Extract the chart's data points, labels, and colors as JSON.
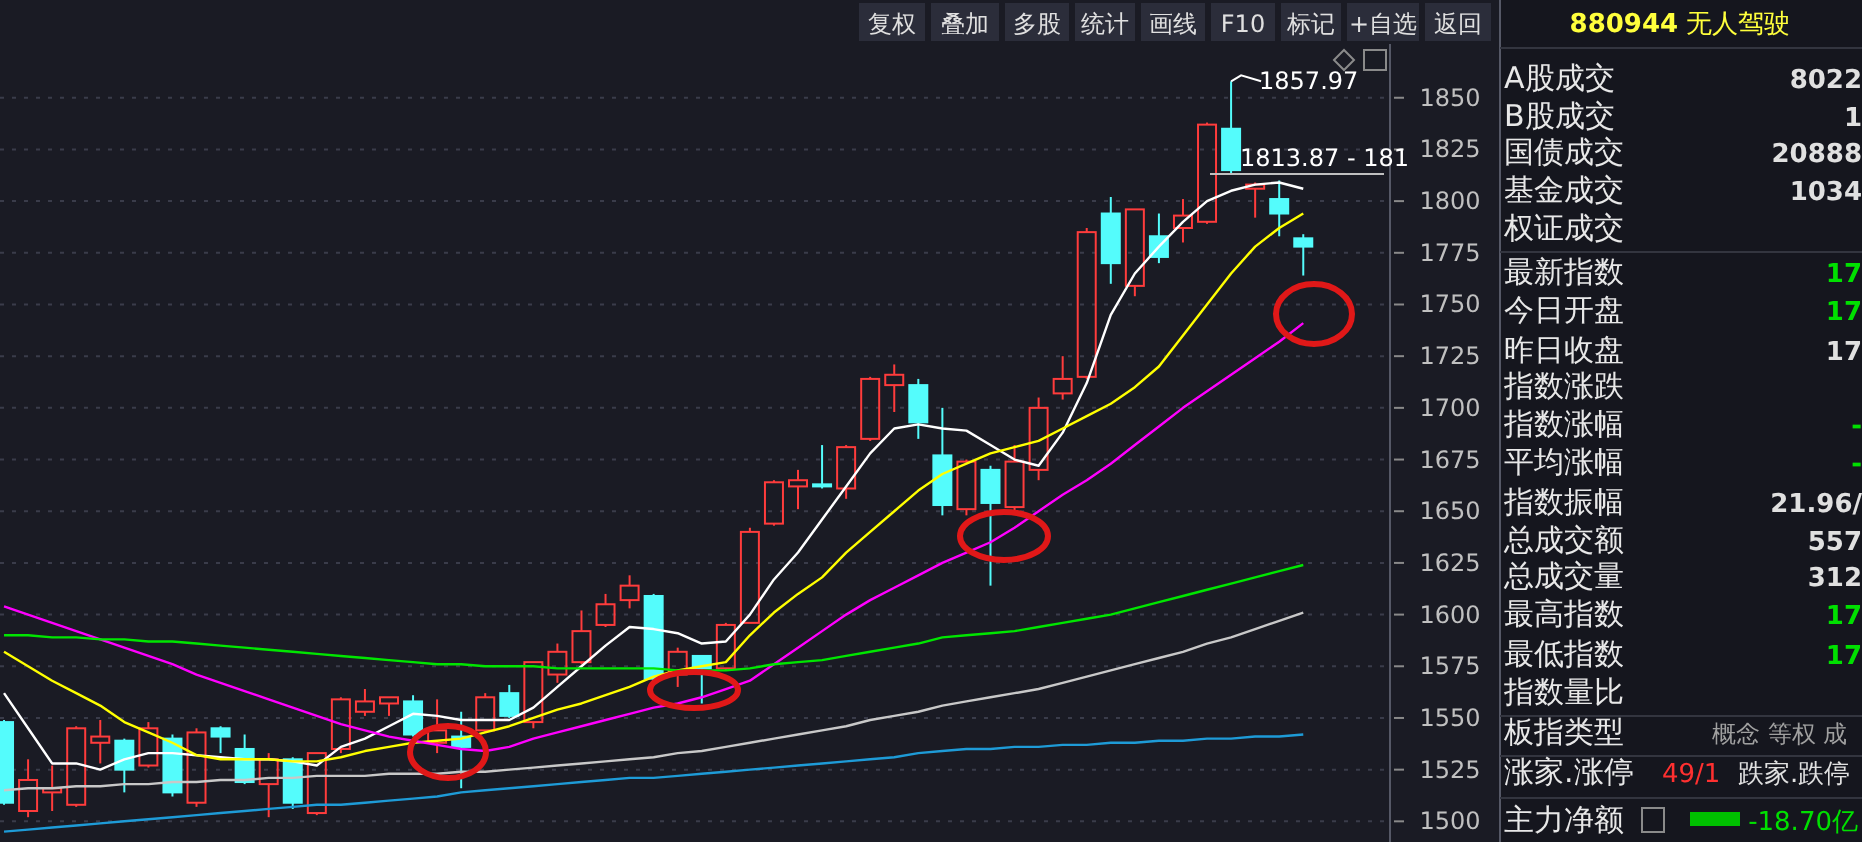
{
  "chart_data": [
    {
      "type": "candlestick",
      "categories": [
        null,
        null,
        null,
        null,
        null,
        null,
        null,
        null,
        null,
        null,
        null,
        null,
        null,
        null,
        null,
        null,
        null,
        null,
        null,
        null,
        null,
        null,
        null,
        null,
        null,
        null,
        null,
        null,
        null,
        null,
        null,
        null,
        null,
        null,
        null,
        null,
        null,
        null,
        null,
        null,
        null,
        null,
        null,
        null,
        null,
        null,
        null,
        null,
        null,
        null,
        null,
        null,
        null,
        null,
        null
      ],
      "ohlc": [
        [
          1548,
          1549,
          1508,
          1509
        ],
        [
          1505,
          1530,
          1502,
          1520
        ],
        [
          1514,
          1527,
          1505,
          1516
        ],
        [
          1508,
          1546,
          1507,
          1545
        ],
        [
          1538,
          1549,
          1528,
          1541
        ],
        [
          1539,
          1540,
          1514,
          1525
        ],
        [
          1527,
          1548,
          1526,
          1545
        ],
        [
          1540,
          1542,
          1512,
          1514
        ],
        [
          1509,
          1545,
          1507,
          1543
        ],
        [
          1545,
          1546,
          1533,
          1541
        ],
        [
          1535,
          1542,
          1518,
          1519
        ],
        [
          1518,
          1533,
          1502,
          1530
        ],
        [
          1530,
          1531,
          1506,
          1509
        ],
        [
          1504,
          1533,
          1503,
          1533
        ],
        [
          1535,
          1560,
          1533,
          1559
        ],
        [
          1553,
          1564,
          1551,
          1558
        ],
        [
          1557,
          1560,
          1551,
          1560
        ],
        [
          1558,
          1561,
          1541,
          1542
        ],
        [
          1538,
          1559,
          1533,
          1544
        ],
        [
          1541,
          1553,
          1516,
          1536
        ],
        [
          1544,
          1562,
          1543,
          1560
        ],
        [
          1562,
          1566,
          1550,
          1551
        ],
        [
          1548,
          1577,
          1545,
          1577
        ],
        [
          1571,
          1586,
          1567,
          1582
        ],
        [
          1577,
          1602,
          1576,
          1592
        ],
        [
          1595,
          1610,
          1594,
          1605
        ],
        [
          1607,
          1619,
          1603,
          1614
        ],
        [
          1609,
          1610,
          1566,
          1569
        ],
        [
          1571,
          1584,
          1565,
          1582
        ],
        [
          1580,
          1580,
          1557,
          1574
        ],
        [
          1574,
          1596,
          1573,
          1595
        ],
        [
          1596,
          1642,
          1596,
          1640
        ],
        [
          1644,
          1665,
          1643,
          1664
        ],
        [
          1662,
          1670,
          1651,
          1665
        ],
        [
          1663,
          1682,
          1661,
          1662
        ],
        [
          1661,
          1682,
          1656,
          1681
        ],
        [
          1685,
          1715,
          1684,
          1714
        ],
        [
          1711,
          1721,
          1698,
          1716
        ],
        [
          1711,
          1714,
          1685,
          1693
        ],
        [
          1677,
          1700,
          1648,
          1653
        ],
        [
          1651,
          1675,
          1648,
          1674
        ],
        [
          1670,
          1672,
          1614,
          1654
        ],
        [
          1652,
          1682,
          1650,
          1674
        ],
        [
          1670,
          1705,
          1665,
          1700
        ],
        [
          1707,
          1725,
          1704,
          1714
        ],
        [
          1715,
          1787,
          1714,
          1785
        ],
        [
          1794,
          1802,
          1760,
          1770
        ],
        [
          1759,
          1796,
          1754,
          1796
        ],
        [
          1783,
          1794,
          1770,
          1773
        ],
        [
          1787,
          1801,
          1780,
          1793
        ],
        [
          1790,
          1838,
          1789,
          1837
        ],
        [
          1835,
          1857.97,
          1813,
          1815
        ],
        [
          1806,
          1809,
          1792,
          1808
        ],
        [
          1801,
          1810,
          1783,
          1794
        ],
        [
          1782,
          1784,
          1764,
          1778
        ]
      ],
      "series": [
        {
          "type": "line",
          "color": "#ffffff",
          "values": [
            1562,
            1545,
            1528,
            1528,
            1525,
            1530,
            1533,
            1533,
            1532,
            1531,
            1530,
            1530,
            1529,
            1527,
            1536,
            1540,
            1546,
            1552,
            1551,
            1549,
            1549,
            1549,
            1555,
            1565,
            1575,
            1585,
            1594,
            1593,
            1591,
            1586,
            1587,
            1600,
            1617,
            1630,
            1646,
            1662,
            1678,
            1690,
            1692,
            1690,
            1689,
            1682,
            1675,
            1672,
            1688,
            1712,
            1745,
            1765,
            1778,
            1790,
            1800,
            1805,
            1808,
            1809,
            1806
          ]
        },
        {
          "type": "line",
          "color": "#ffff00",
          "values": [
            1582,
            1575,
            1568,
            1562,
            1556,
            1548,
            1543,
            1538,
            1532,
            1530,
            1530,
            1530,
            1529,
            1529,
            1531,
            1534,
            1536,
            1538,
            1539,
            1540,
            1543,
            1546,
            1550,
            1554,
            1557,
            1561,
            1565,
            1570,
            1573,
            1575,
            1577,
            1590,
            1601,
            1610,
            1618,
            1630,
            1640,
            1650,
            1660,
            1668,
            1673,
            1678,
            1681,
            1684,
            1690,
            1696,
            1702,
            1710,
            1720,
            1735,
            1750,
            1765,
            1778,
            1787,
            1794
          ]
        },
        {
          "type": "line",
          "color": "#ff00ff",
          "values": [
            1604,
            1600,
            1596,
            1592,
            1588,
            1584,
            1580,
            1576,
            1571,
            1567,
            1563,
            1559,
            1555,
            1551,
            1547,
            1544,
            1541,
            1539,
            1537,
            1535,
            1534,
            1536,
            1540,
            1543,
            1546,
            1549,
            1552,
            1555,
            1557,
            1560,
            1564,
            1568,
            1576,
            1584,
            1592,
            1600,
            1607,
            1613,
            1619,
            1625,
            1630,
            1635,
            1642,
            1650,
            1658,
            1665,
            1673,
            1682,
            1691,
            1700,
            1708,
            1716,
            1724,
            1732,
            1741
          ]
        },
        {
          "type": "line",
          "color": "#00e600",
          "values": [
            1590,
            1590,
            1589,
            1589,
            1588,
            1588,
            1587,
            1587,
            1586,
            1585,
            1584,
            1583,
            1582,
            1581,
            1580,
            1579,
            1578,
            1577,
            1576,
            1576,
            1575,
            1575,
            1575,
            1574,
            1574,
            1574,
            1574,
            1574,
            1573,
            1573,
            1573,
            1574,
            1576,
            1577,
            1578,
            1580,
            1582,
            1584,
            1586,
            1589,
            1590,
            1591,
            1592,
            1594,
            1596,
            1598,
            1600,
            1603,
            1606,
            1609,
            1612,
            1615,
            1618,
            1621,
            1624
          ]
        },
        {
          "type": "line",
          "color": "#c8c8c8",
          "values": [
            1515,
            1516,
            1516,
            1517,
            1517,
            1518,
            1518,
            1519,
            1519,
            1520,
            1520,
            1521,
            1521,
            1522,
            1522,
            1522,
            1523,
            1523,
            1523,
            1524,
            1524,
            1525,
            1526,
            1527,
            1528,
            1529,
            1530,
            1531,
            1533,
            1534,
            1536,
            1538,
            1540,
            1542,
            1544,
            1546,
            1549,
            1551,
            1553,
            1556,
            1558,
            1560,
            1562,
            1564,
            1567,
            1570,
            1573,
            1576,
            1579,
            1582,
            1586,
            1589,
            1593,
            1597,
            1601
          ]
        },
        {
          "type": "line",
          "color": "#1e9bd7",
          "values": [
            1495,
            1496,
            1497,
            1498,
            1499,
            1500,
            1501,
            1502,
            1503,
            1504,
            1505,
            1506,
            1507,
            1508,
            1508,
            1509,
            1510,
            1511,
            1512,
            1514,
            1515,
            1516,
            1517,
            1518,
            1519,
            1520,
            1521,
            1521,
            1522,
            1523,
            1524,
            1525,
            1526,
            1527,
            1528,
            1529,
            1530,
            1531,
            1533,
            1534,
            1535,
            1535,
            1536,
            1536,
            1537,
            1537,
            1538,
            1538,
            1539,
            1539,
            1540,
            1540,
            1541,
            1541,
            1542
          ]
        }
      ],
      "ylim": [
        1490,
        1876
      ],
      "yticks": [
        1500,
        1525,
        1550,
        1575,
        1600,
        1625,
        1650,
        1675,
        1700,
        1725,
        1750,
        1775,
        1800,
        1825,
        1850
      ],
      "grid": "y",
      "annotations": [
        "1857.97",
        "1813.87 - 181",
        "复权",
        "叠加",
        "多股",
        "统计",
        "画线",
        "F10",
        "标记",
        "+自选",
        "返回"
      ]
    },
    {
      "type": "other",
      "title": "880944 无人驾驶",
      "annotations": [
        "A股成交",
        "B股成交",
        "国债成交",
        "基金成交",
        "权证成交",
        "最新指数",
        "今日开盘",
        "昨日收盘",
        "指数涨跌",
        "指数涨幅",
        "平均涨幅",
        "指数振幅",
        "总成交额",
        "总成交量",
        "最高指数",
        "最低指数",
        "指数量比",
        "板指类型",
        "涨家.涨停",
        "主力净额",
        "8022",
        "1",
        "20888",
        "1034",
        "17",
        "17",
        "17",
        "-",
        "-",
        "21.96/",
        "557",
        "312",
        "17",
        "17",
        "概念 等权 成",
        "49/1",
        "跌家.跌停",
        "-18.70亿"
      ]
    }
  ]
}
